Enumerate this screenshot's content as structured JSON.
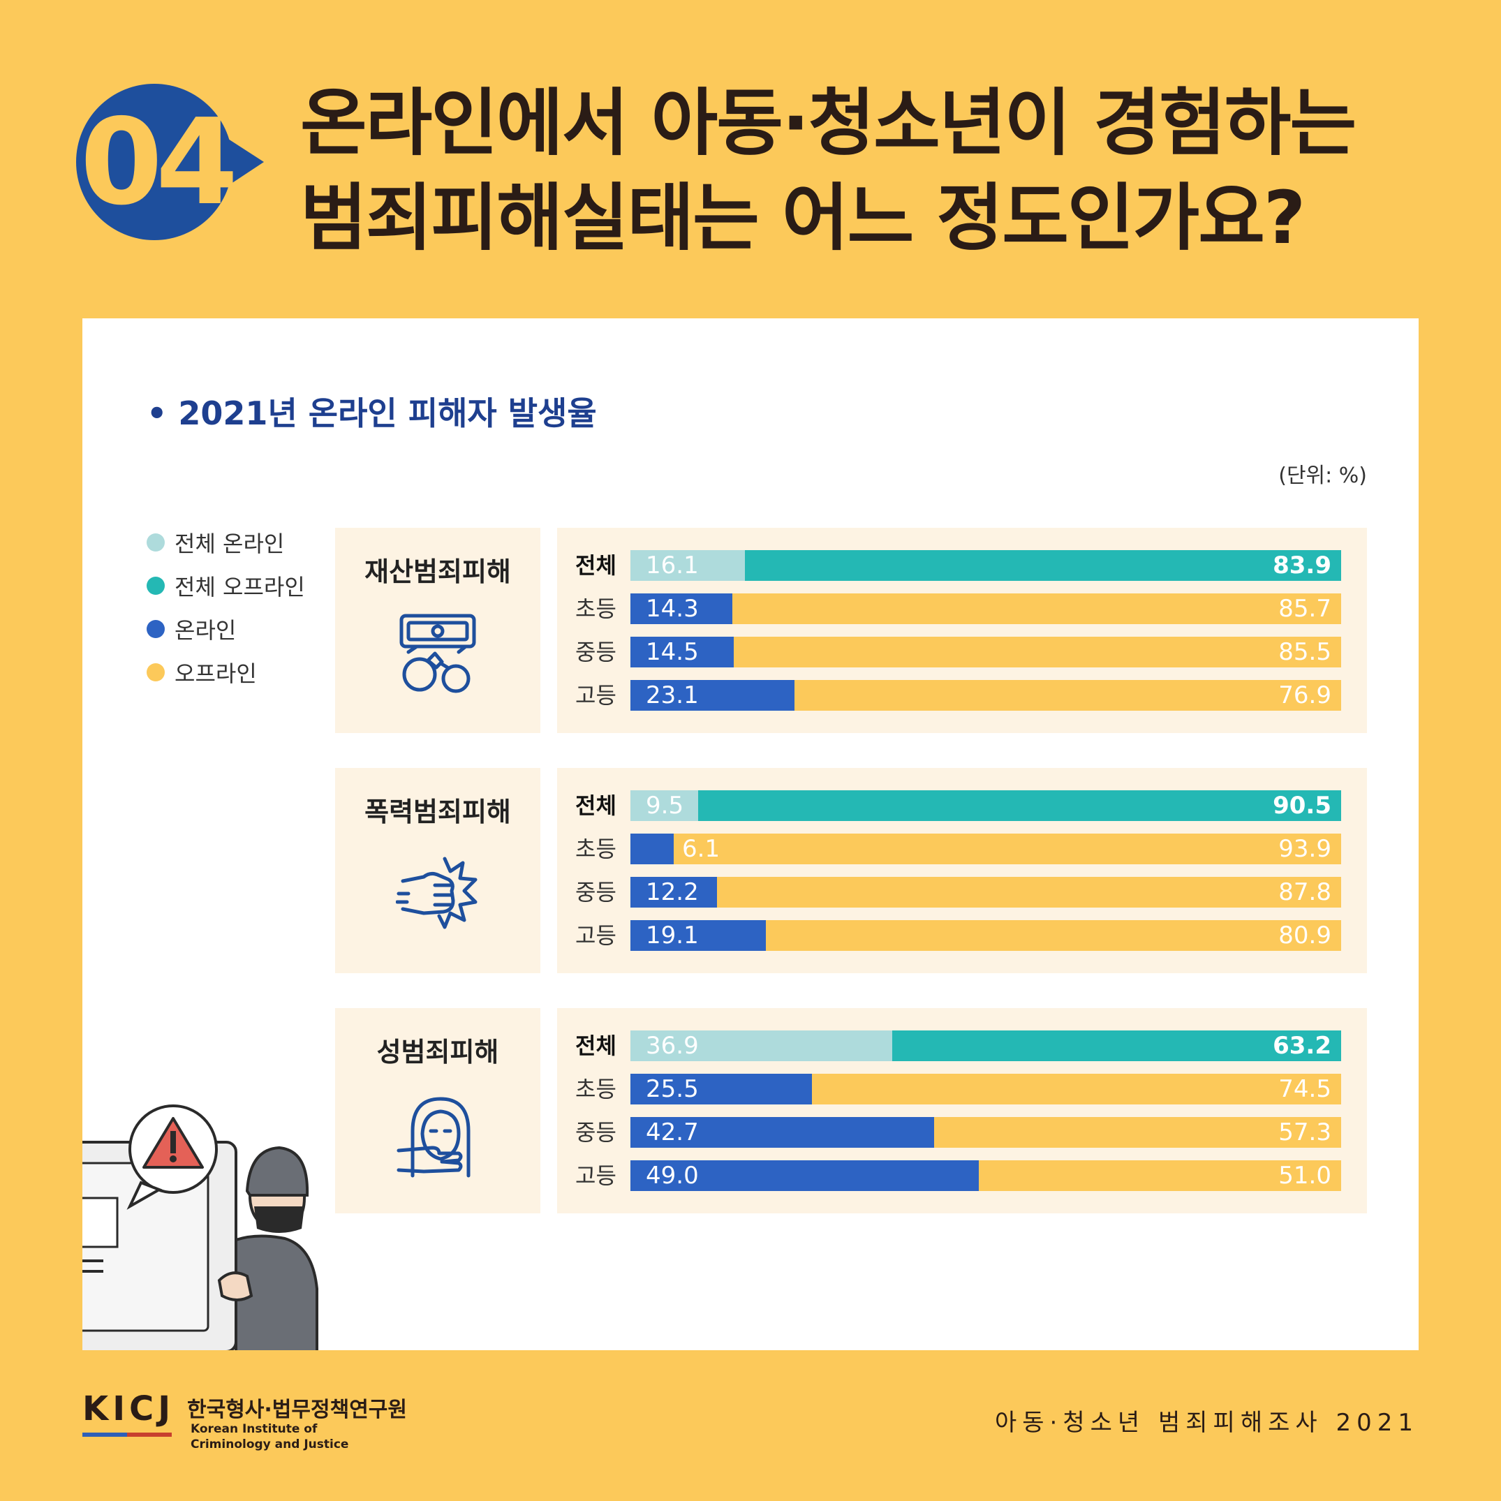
{
  "badge": {
    "number": "04"
  },
  "header": {
    "title_line1": "온라인에서 아동·청소년이 경험하는",
    "title_line2": "범죄피해실태는 어느 정도인가요?"
  },
  "chart_data": {
    "type": "bar",
    "title": "• 2021년 온라인 피해자 발생율",
    "unit": "(단위: %)",
    "legend": [
      {
        "name": "전체 온라인",
        "color": "#aedbdc"
      },
      {
        "name": "전체 오프라인",
        "color": "#24b8b4"
      },
      {
        "name": "온라인",
        "color": "#2d63c3"
      },
      {
        "name": "오프라인",
        "color": "#fcc95a"
      }
    ],
    "groups": [
      {
        "name": "재산범죄피해",
        "icon": "money-handcuffs-icon",
        "rows": [
          {
            "label": "전체",
            "online": 16.1,
            "offline": 83.9,
            "online_text": "16.1",
            "offline_text": "83.9",
            "total": true
          },
          {
            "label": "초등",
            "online": 14.3,
            "offline": 85.7,
            "online_text": "14.3",
            "offline_text": "85.7"
          },
          {
            "label": "중등",
            "online": 14.5,
            "offline": 85.5,
            "online_text": "14.5",
            "offline_text": "85.5"
          },
          {
            "label": "고등",
            "online": 23.1,
            "offline": 76.9,
            "online_text": "23.1",
            "offline_text": "76.9"
          }
        ]
      },
      {
        "name": "폭력범죄피해",
        "icon": "fist-punch-icon",
        "rows": [
          {
            "label": "전체",
            "online": 9.5,
            "offline": 90.5,
            "online_text": "9.5",
            "offline_text": "90.5",
            "total": true
          },
          {
            "label": "초등",
            "online": 6.1,
            "offline": 93.9,
            "online_text": "6.1",
            "offline_text": "93.9"
          },
          {
            "label": "중등",
            "online": 12.2,
            "offline": 87.8,
            "online_text": "12.2",
            "offline_text": "87.8"
          },
          {
            "label": "고등",
            "online": 19.1,
            "offline": 80.9,
            "online_text": "19.1",
            "offline_text": "80.9"
          }
        ]
      },
      {
        "name": "성범죄피해",
        "icon": "covered-mouth-icon",
        "rows": [
          {
            "label": "전체",
            "online": 36.9,
            "offline": 63.2,
            "online_text": "36.9",
            "offline_text": "63.2",
            "total": true
          },
          {
            "label": "초등",
            "online": 25.5,
            "offline": 74.5,
            "online_text": "25.5",
            "offline_text": "74.5"
          },
          {
            "label": "중등",
            "online": 42.7,
            "offline": 57.3,
            "online_text": "42.7",
            "offline_text": "57.3"
          },
          {
            "label": "고등",
            "online": 49.0,
            "offline": 51.0,
            "online_text": "49.0",
            "offline_text": "51.0"
          }
        ]
      }
    ]
  },
  "footer": {
    "logo": "KICJ",
    "org_ko": "한국형사·법무정책연구원",
    "org_en_line1": "Korean Institute of",
    "org_en_line2": "Criminology and Justice",
    "source": "아동·청소년 범죄피해조사 2021"
  }
}
